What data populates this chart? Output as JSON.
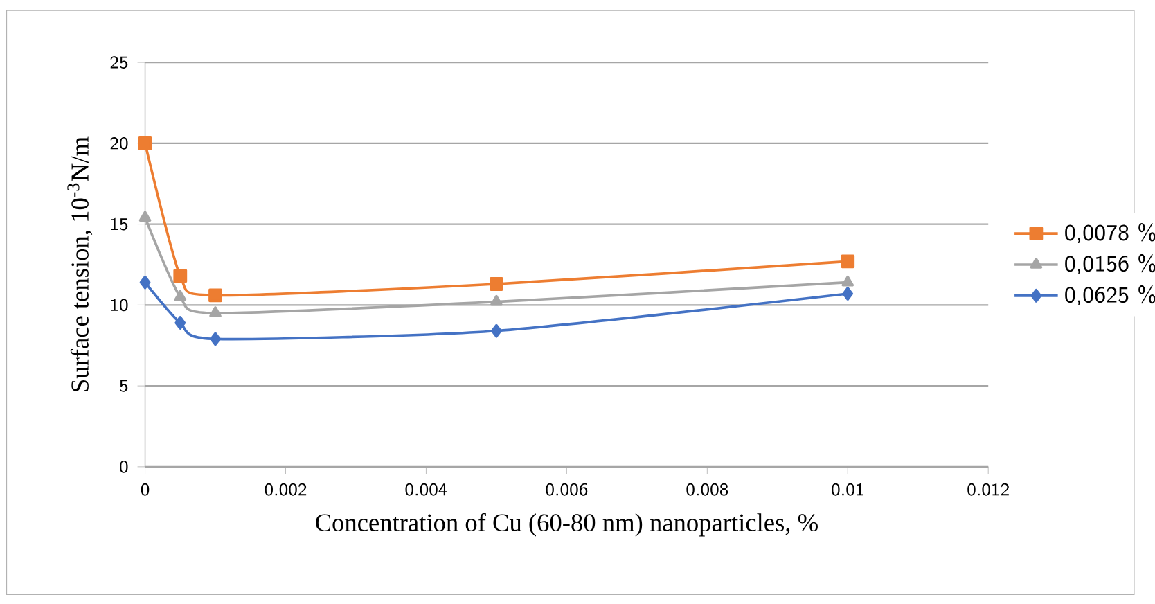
{
  "chart_data": {
    "type": "line",
    "xlabel": "Concentration of Cu (60-80 nm) nanoparticles, %",
    "ylabel": "Surface tension, 10$^{-3}$N/m",
    "x": [
      0,
      0.0005,
      0.001,
      0.005,
      0.01
    ],
    "series": [
      {
        "name": "0,0078 %",
        "color": "#ed7d31",
        "marker": "square",
        "values": [
          20,
          11.8,
          10.6,
          11.3,
          12.7
        ]
      },
      {
        "name": "0,0156 %",
        "color": "#a5a5a5",
        "marker": "triangle",
        "values": [
          15.4,
          10.5,
          9.5,
          10.2,
          11.4
        ]
      },
      {
        "name": "0,0625 %",
        "color": "#4472c4",
        "marker": "diamond",
        "values": [
          11.4,
          8.9,
          7.9,
          8.4,
          10.7
        ]
      }
    ],
    "xlim": [
      0,
      0.012
    ],
    "xticks": [
      0,
      0.002,
      0.004,
      0.006,
      0.008,
      0.01,
      0.012
    ],
    "ylim": [
      0,
      25
    ],
    "yticks": [
      0,
      5,
      10,
      15,
      20,
      25
    ],
    "grid": "y",
    "legend": "right",
    "line_style": "solid"
  }
}
